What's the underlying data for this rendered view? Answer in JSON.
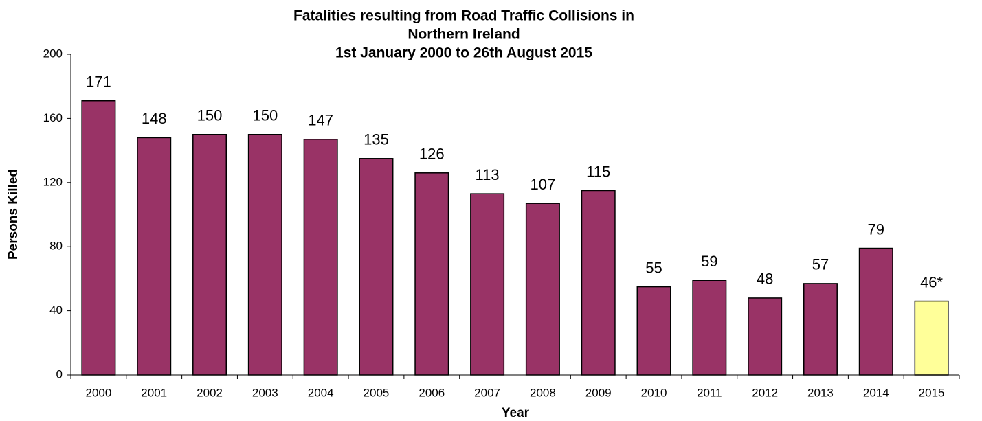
{
  "chart_data": {
    "type": "bar",
    "title": [
      "Fatalities resulting from Road Traffic Collisions in",
      "Northern Ireland"
    ],
    "subtitle": "1st January 2000 to 26th August 2015",
    "x_label": "Year",
    "y_label": "Persons Killed",
    "categories": [
      "2000",
      "2001",
      "2002",
      "2003",
      "2004",
      "2005",
      "2006",
      "2007",
      "2008",
      "2009",
      "2010",
      "2011",
      "2012",
      "2013",
      "2014",
      "2015"
    ],
    "values": [
      171,
      148,
      150,
      150,
      147,
      135,
      126,
      113,
      107,
      115,
      55,
      59,
      48,
      57,
      79,
      46
    ],
    "value_labels": [
      "171",
      "148",
      "150",
      "150",
      "147",
      "135",
      "126",
      "113",
      "107",
      "115",
      "55",
      "59",
      "48",
      "57",
      "79",
      "46*"
    ],
    "colors": [
      "#993366",
      "#993366",
      "#993366",
      "#993366",
      "#993366",
      "#993366",
      "#993366",
      "#993366",
      "#993366",
      "#993366",
      "#993366",
      "#993366",
      "#993366",
      "#993366",
      "#993366",
      "#ffff99"
    ],
    "ylim": [
      0,
      200
    ],
    "yticks": [
      0,
      40,
      80,
      120,
      160,
      200
    ],
    "grid": false
  }
}
